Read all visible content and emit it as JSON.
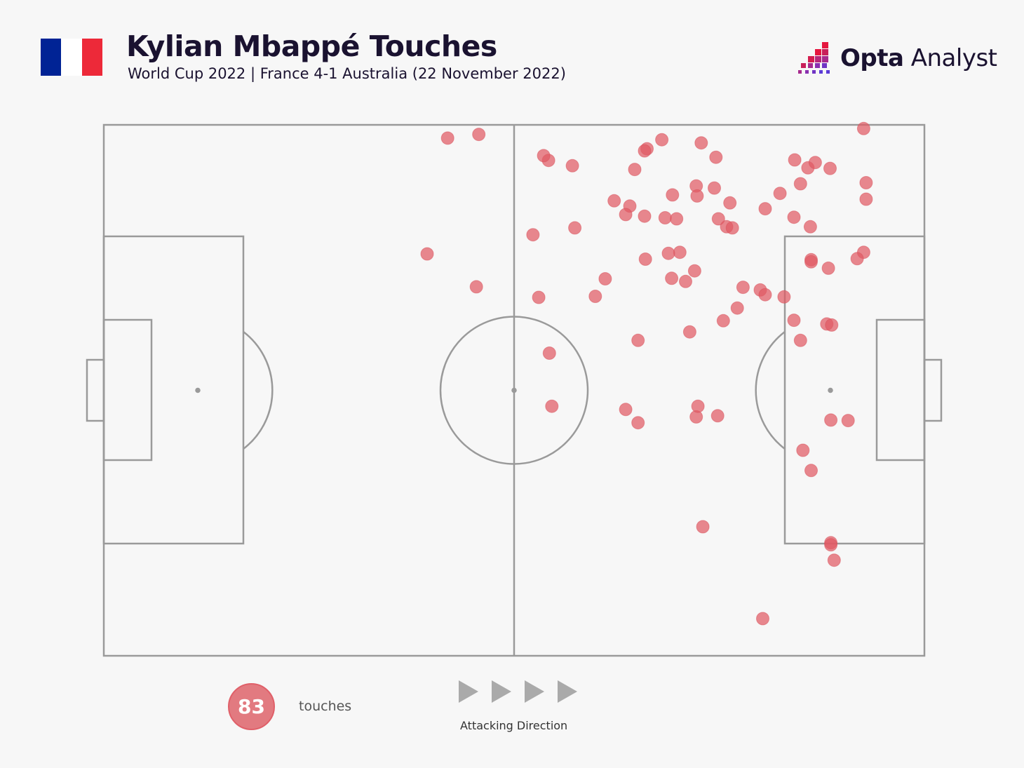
{
  "header": {
    "title": "Kylian Mbappé Touches",
    "subtitle": "World Cup 2022 | France 4-1 Australia (22 November 2022)",
    "flag_colors": [
      "#002395",
      "#ffffff",
      "#ed2939"
    ]
  },
  "logo": {
    "bold": "Opta",
    "light": " Analyst",
    "colors": [
      "#e5173f",
      "#a72a8e",
      "#5c3cd6"
    ]
  },
  "legend": {
    "count": "83",
    "count_label": "touches",
    "direction_label": "Attacking Direction"
  },
  "colors": {
    "touch_fill": "#e05a64",
    "pitch_line": "#9a9a9a",
    "background": "#f7f7f7"
  },
  "chart_data": {
    "type": "scatter",
    "title": "Kylian Mbappé Touches",
    "subtitle": "World Cup 2022 | France 4-1 Australia (22 November 2022)",
    "xlabel": "",
    "ylabel": "",
    "xlim": [
      0,
      100
    ],
    "ylim": [
      0,
      100
    ],
    "grid": false,
    "series": [
      {
        "name": "touches",
        "points": [
          [
            41.9,
            97.5
          ],
          [
            45.7,
            98.2
          ],
          [
            39.4,
            75.7
          ],
          [
            45.4,
            69.5
          ],
          [
            54.2,
            93.3
          ],
          [
            53.6,
            94.2
          ],
          [
            57.1,
            92.3
          ],
          [
            52.3,
            79.3
          ],
          [
            57.4,
            80.6
          ],
          [
            53.0,
            67.5
          ],
          [
            54.3,
            57.0
          ],
          [
            54.6,
            47.0
          ],
          [
            68.0,
            97.2
          ],
          [
            66.2,
            95.5
          ],
          [
            65.9,
            95.1
          ],
          [
            64.7,
            91.6
          ],
          [
            62.2,
            85.7
          ],
          [
            64.1,
            84.7
          ],
          [
            63.6,
            83.1
          ],
          [
            65.9,
            82.8
          ],
          [
            68.4,
            82.5
          ],
          [
            69.8,
            82.3
          ],
          [
            69.3,
            86.8
          ],
          [
            72.8,
            96.6
          ],
          [
            74.6,
            93.9
          ],
          [
            72.2,
            88.5
          ],
          [
            70.2,
            76.0
          ],
          [
            69.2,
            71.1
          ],
          [
            66.0,
            74.7
          ],
          [
            68.8,
            75.8
          ],
          [
            61.1,
            71.0
          ],
          [
            59.9,
            67.7
          ],
          [
            70.9,
            70.5
          ],
          [
            65.1,
            59.4
          ],
          [
            71.4,
            61.0
          ],
          [
            75.5,
            63.1
          ],
          [
            63.6,
            46.4
          ],
          [
            65.1,
            43.9
          ],
          [
            72.2,
            45.0
          ],
          [
            72.4,
            47.0
          ],
          [
            74.8,
            45.2
          ],
          [
            72.0,
            72.5
          ],
          [
            74.9,
            82.3
          ],
          [
            75.9,
            80.8
          ],
          [
            76.3,
            85.3
          ],
          [
            74.4,
            88.1
          ],
          [
            76.6,
            80.6
          ],
          [
            77.2,
            65.5
          ],
          [
            77.9,
            69.4
          ],
          [
            72.3,
            86.6
          ],
          [
            73.0,
            24.3
          ],
          [
            80.6,
            84.2
          ],
          [
            82.4,
            87.1
          ],
          [
            84.2,
            93.4
          ],
          [
            85.8,
            91.9
          ],
          [
            86.7,
            92.9
          ],
          [
            88.5,
            91.8
          ],
          [
            84.9,
            88.9
          ],
          [
            86.1,
            80.8
          ],
          [
            92.9,
            89.1
          ],
          [
            92.9,
            86.0
          ],
          [
            86.2,
            74.6
          ],
          [
            92.6,
            76.0
          ],
          [
            84.1,
            82.6
          ],
          [
            80.0,
            68.9
          ],
          [
            80.6,
            68.0
          ],
          [
            84.1,
            63.2
          ],
          [
            86.2,
            74.2
          ],
          [
            88.3,
            73.0
          ],
          [
            91.8,
            74.8
          ],
          [
            82.9,
            67.6
          ],
          [
            88.1,
            62.5
          ],
          [
            88.7,
            62.3
          ],
          [
            84.9,
            59.4
          ],
          [
            88.6,
            44.4
          ],
          [
            90.7,
            44.3
          ],
          [
            85.2,
            38.7
          ],
          [
            86.2,
            34.9
          ],
          [
            92.6,
            99.3
          ],
          [
            88.6,
            21.3
          ],
          [
            88.6,
            20.9
          ],
          [
            89.0,
            18.0
          ],
          [
            80.3,
            7.0
          ]
        ]
      }
    ]
  }
}
